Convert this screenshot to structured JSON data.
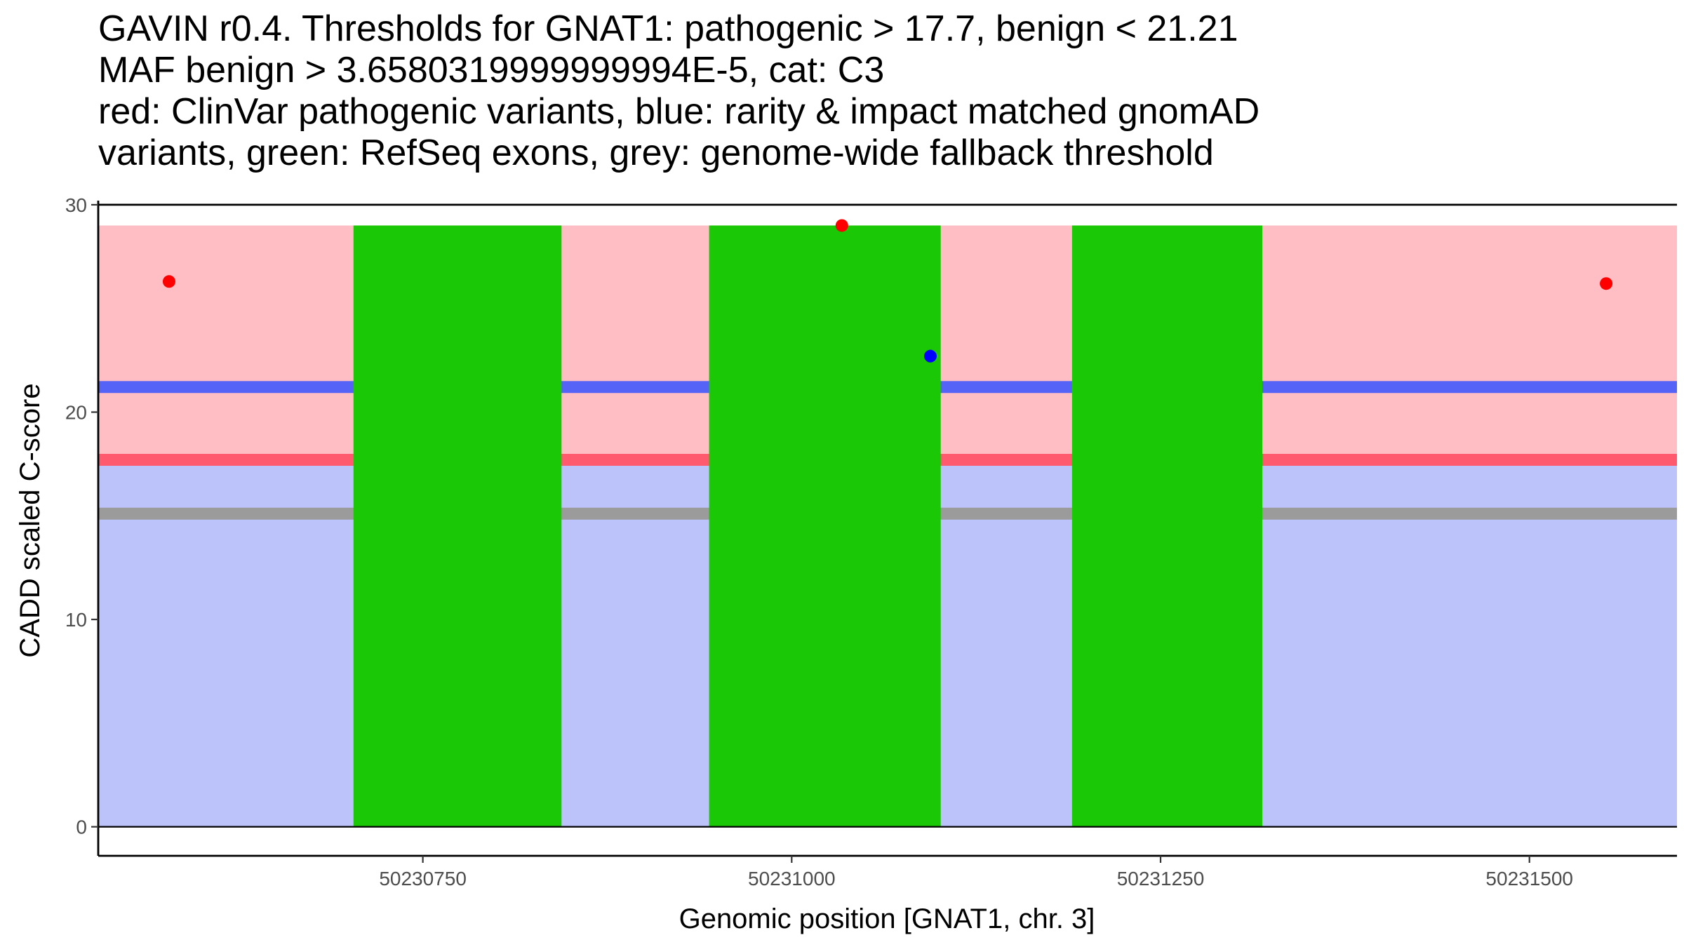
{
  "chart_data": {
    "type": "scatter",
    "title_lines": [
      "GAVIN r0.4. Thresholds for GNAT1: pathogenic > 17.7, benign < 21.21",
      "MAF benign > 3.6580319999999994E-5, cat: C3",
      "red: ClinVar pathogenic variants, blue: rarity & impact matched gnomAD",
      "variants, green: RefSeq exons, grey: genome-wide fallback threshold"
    ],
    "xlabel": "Genomic position [GNAT1, chr. 3]",
    "ylabel": "CADD scaled C-score",
    "xlim": [
      50230530,
      50231600
    ],
    "ylim": [
      -1.4,
      30.2
    ],
    "x_ticks": [
      50230750,
      50231000,
      50231250,
      50231500
    ],
    "x_tick_labels": [
      "50230750",
      "50231000",
      "50231250",
      "50231500"
    ],
    "y_ticks": [
      0,
      10,
      20,
      30
    ],
    "y_tick_labels": [
      "0",
      "10",
      "20",
      "30"
    ],
    "grid": false,
    "background_bands": [
      {
        "name": "pathogenic-zone",
        "y0": 17.7,
        "y1": 29,
        "color": "#ffbec4"
      },
      {
        "name": "benign-zone",
        "y0": 0,
        "y1": 17.7,
        "color": "#bcc2fa"
      }
    ],
    "threshold_lines": [
      {
        "name": "benign-threshold",
        "y": 21.21,
        "color": "#5663f7"
      },
      {
        "name": "pathogenic-threshold",
        "y": 17.7,
        "color": "#ff5a6e"
      },
      {
        "name": "fallback-threshold",
        "y": 15.1,
        "color": "#9b9b9b"
      }
    ],
    "exons": [
      {
        "x0": 50230703,
        "x1": 50230844
      },
      {
        "x0": 50230944,
        "x1": 50231101
      },
      {
        "x0": 50231190,
        "x1": 50231319
      }
    ],
    "exon_color": "#1bc805",
    "series": [
      {
        "name": "ClinVar pathogenic variants",
        "color": "#ff0000",
        "points": [
          {
            "x": 50230578,
            "y": 26.3
          },
          {
            "x": 50231034,
            "y": 29.0
          },
          {
            "x": 50231552,
            "y": 26.2
          }
        ]
      },
      {
        "name": "rarity & impact matched gnomAD variants",
        "color": "#0000ff",
        "points": [
          {
            "x": 50231094,
            "y": 22.7
          }
        ]
      }
    ]
  }
}
